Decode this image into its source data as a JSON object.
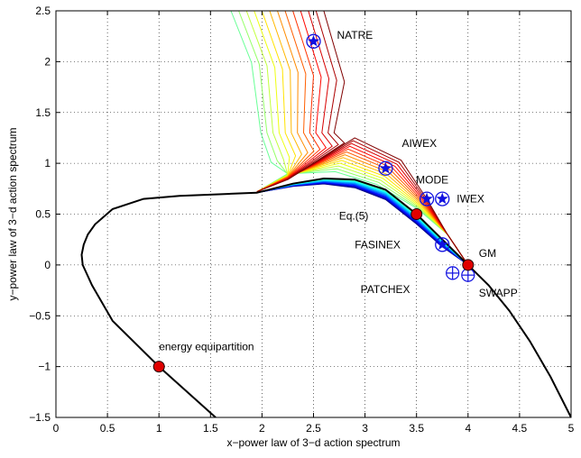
{
  "chart_data": {
    "type": "line",
    "xlabel": "x−power law of 3−d action spectrum",
    "ylabel": "y−power law of 3−d action spectrum",
    "xlim": [
      0,
      5
    ],
    "ylim": [
      -1.5,
      2.5
    ],
    "xticks": [
      0,
      0.5,
      1,
      1.5,
      2,
      2.5,
      3,
      3.5,
      4,
      4.5,
      5
    ],
    "yticks": [
      -1.5,
      -1,
      -0.5,
      0,
      0.5,
      1,
      1.5,
      2,
      2.5
    ],
    "xtick_labels": [
      "0",
      "0.5",
      "1",
      "1.5",
      "2",
      "2.5",
      "3",
      "3.5",
      "4",
      "4.5",
      "5"
    ],
    "ytick_labels": [
      "−1.5",
      "−1",
      "−0.5",
      "0",
      "0.5",
      "1",
      "1.5",
      "2",
      "2.5"
    ],
    "grid": true,
    "boundary_curve": {
      "x": [
        1.55,
        1.0,
        0.55,
        0.35,
        0.26,
        0.25,
        0.27,
        0.31,
        0.38,
        0.55,
        0.85,
        1.2,
        1.7,
        1.95,
        2.3,
        2.6,
        2.9,
        3.2,
        3.5,
        3.75,
        4.0,
        4.2,
        4.4,
        4.6,
        4.8,
        5.0
      ],
      "y": [
        -1.5,
        -1.0,
        -0.55,
        -0.2,
        0.0,
        0.1,
        0.2,
        0.3,
        0.4,
        0.55,
        0.65,
        0.68,
        0.7,
        0.71,
        0.8,
        0.85,
        0.84,
        0.74,
        0.5,
        0.25,
        0.0,
        -0.2,
        -0.45,
        -0.75,
        -1.1,
        -1.5
      ]
    },
    "points": [
      {
        "label": "NATRE",
        "x": 2.5,
        "y": 2.2,
        "marker": "star"
      },
      {
        "label": "AIWEX",
        "x": 3.2,
        "y": 0.95,
        "marker": "star"
      },
      {
        "label": "MODE",
        "x": 3.6,
        "y": 0.65,
        "marker": "star"
      },
      {
        "label": "IWEX",
        "x": 3.75,
        "y": 0.65,
        "marker": "star"
      },
      {
        "label": "FASINEX",
        "x": 3.75,
        "y": 0.2,
        "marker": "star"
      },
      {
        "label": "PATCHEX",
        "x": 3.85,
        "y": -0.08,
        "marker": "circle-plus"
      },
      {
        "label": "SWAPP",
        "x": 4.0,
        "y": -0.1,
        "marker": "circle-plus"
      },
      {
        "label": "GM",
        "x": 4.0,
        "y": 0.0,
        "marker": "red-dot"
      },
      {
        "label": "Eq.(5)",
        "x": 3.5,
        "y": 0.5,
        "marker": "red-dot"
      },
      {
        "label": "energy equipartition",
        "x": 1.0,
        "y": -1.0,
        "marker": "red-dot"
      }
    ],
    "contours": {
      "description_levels": 24,
      "colormap": "jet"
    }
  }
}
